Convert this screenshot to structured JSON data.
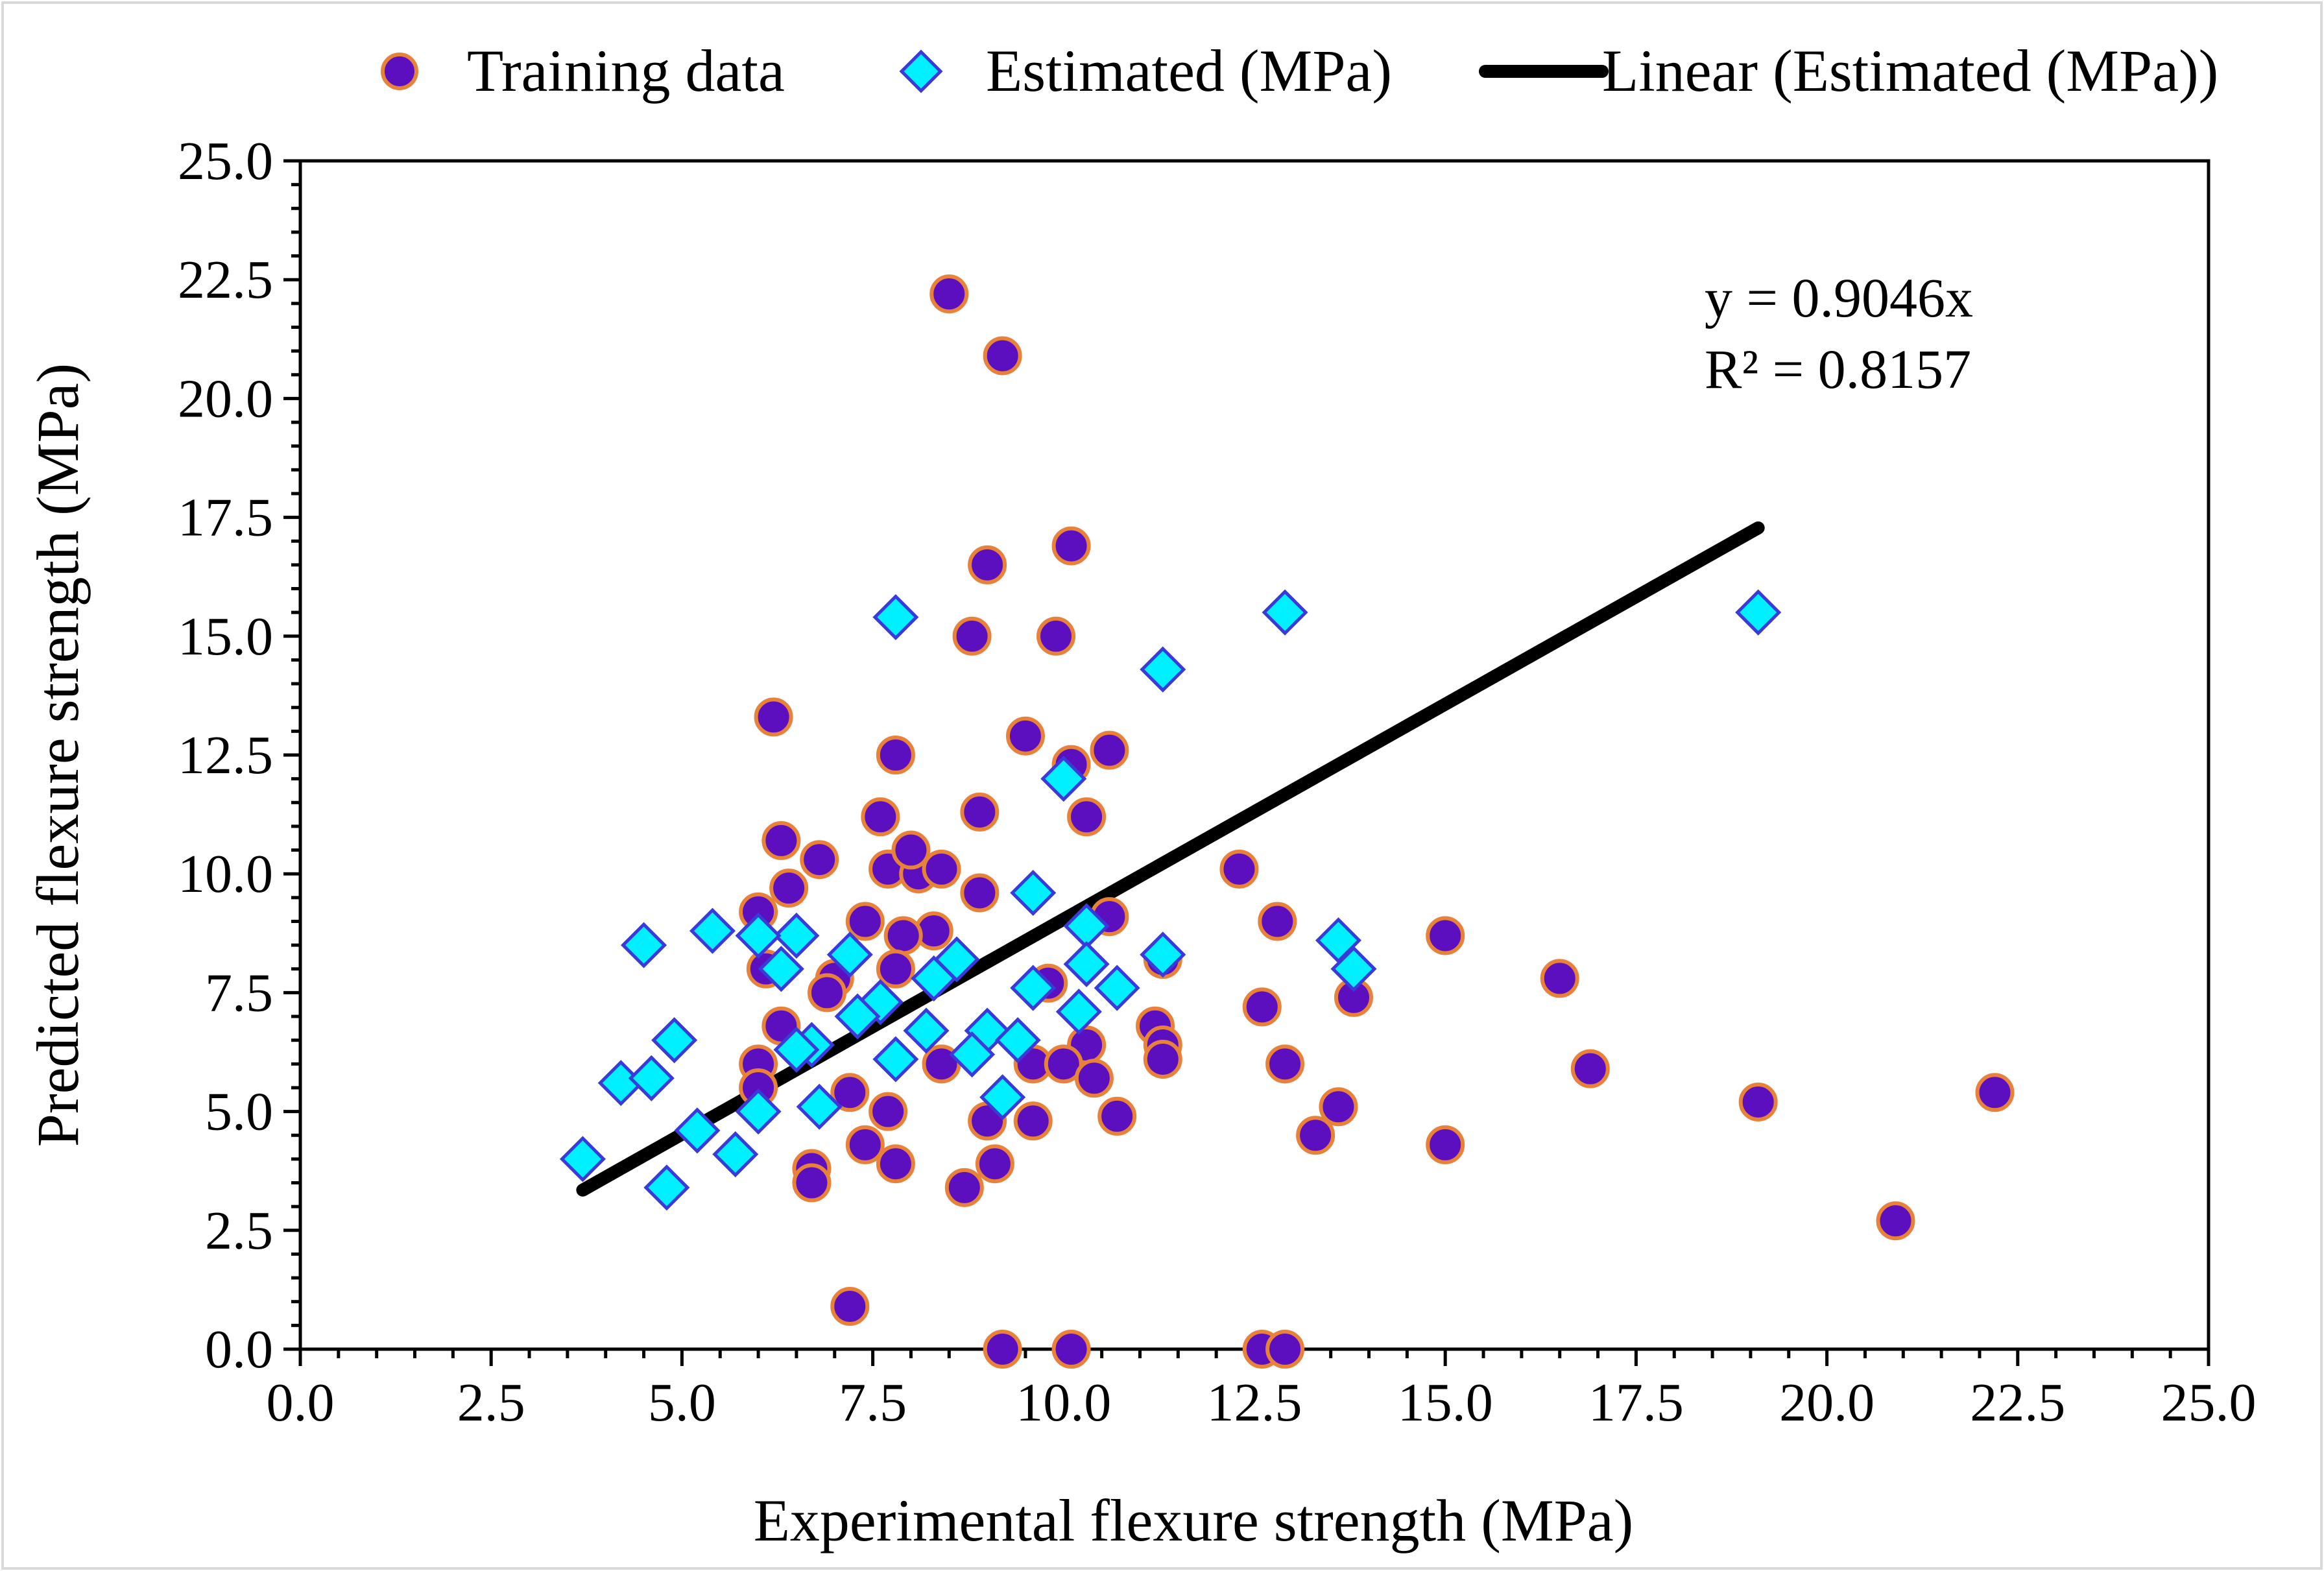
{
  "chart_data": {
    "type": "scatter",
    "title": "",
    "xlabel": "Experimental flexure strength (MPa)",
    "ylabel": "Predicted flexure strength (MPa)",
    "xlim": [
      0,
      25
    ],
    "ylim": [
      0,
      25
    ],
    "xticks": [
      "0.0",
      "2.5",
      "5.0",
      "7.5",
      "10.0",
      "12.5",
      "15.0",
      "17.5",
      "20.0",
      "22.5",
      "25.0"
    ],
    "yticks": [
      "0.0",
      "2.5",
      "5.0",
      "7.5",
      "10.0",
      "12.5",
      "15.0",
      "17.5",
      "20.0",
      "22.5",
      "25.0"
    ],
    "grid": false,
    "legend_position": "top",
    "legend": [
      "Training data",
      "Estimated (MPa)",
      "Linear (Estimated (MPa))"
    ],
    "colors": {
      "training_fill": "#5b0fbf",
      "training_edge": "#e8823a",
      "estimated_fill": "#00f0ff",
      "estimated_edge": "#3a3adb",
      "trendline": "#000000"
    },
    "trendline": {
      "name": "Linear (Estimated (MPa))",
      "slope": 0.9046,
      "intercept": 0,
      "x_range": [
        3.7,
        19.1
      ],
      "equation": "y = 0.9046x",
      "r_squared": "R² = 0.8157"
    },
    "series": [
      {
        "name": "Training data",
        "marker": "circle",
        "points": [
          [
            8.5,
            22.2
          ],
          [
            9.2,
            20.9
          ],
          [
            9.0,
            16.5
          ],
          [
            10.1,
            16.9
          ],
          [
            8.8,
            15.0
          ],
          [
            9.9,
            15.0
          ],
          [
            6.2,
            13.3
          ],
          [
            7.8,
            12.5
          ],
          [
            9.5,
            12.9
          ],
          [
            10.6,
            12.6
          ],
          [
            10.1,
            12.3
          ],
          [
            10.3,
            11.2
          ],
          [
            7.6,
            11.2
          ],
          [
            8.9,
            11.3
          ],
          [
            6.3,
            10.7
          ],
          [
            6.8,
            10.3
          ],
          [
            7.7,
            10.1
          ],
          [
            8.1,
            10.0
          ],
          [
            8.0,
            10.5
          ],
          [
            8.4,
            10.1
          ],
          [
            12.3,
            10.1
          ],
          [
            6.4,
            9.7
          ],
          [
            8.9,
            9.6
          ],
          [
            6.0,
            9.2
          ],
          [
            7.4,
            9.0
          ],
          [
            11.3,
            8.2
          ],
          [
            10.6,
            9.1
          ],
          [
            12.8,
            9.0
          ],
          [
            15.0,
            8.7
          ],
          [
            8.3,
            8.8
          ],
          [
            7.9,
            8.7
          ],
          [
            6.1,
            8.0
          ],
          [
            7.8,
            8.0
          ],
          [
            16.5,
            7.8
          ],
          [
            13.8,
            7.4
          ],
          [
            12.6,
            7.2
          ],
          [
            7.0,
            7.8
          ],
          [
            6.9,
            7.5
          ],
          [
            9.8,
            7.7
          ],
          [
            11.2,
            6.8
          ],
          [
            11.3,
            6.4
          ],
          [
            11.3,
            6.1
          ],
          [
            6.3,
            6.8
          ],
          [
            8.4,
            6.0
          ],
          [
            9.6,
            6.0
          ],
          [
            10.3,
            6.4
          ],
          [
            10.0,
            6.0
          ],
          [
            12.9,
            6.0
          ],
          [
            16.9,
            5.9
          ],
          [
            6.0,
            6.0
          ],
          [
            7.2,
            5.4
          ],
          [
            7.7,
            5.0
          ],
          [
            6.0,
            5.5
          ],
          [
            9.0,
            4.8
          ],
          [
            9.6,
            4.8
          ],
          [
            10.4,
            5.7
          ],
          [
            10.7,
            4.9
          ],
          [
            13.6,
            5.1
          ],
          [
            19.1,
            5.2
          ],
          [
            22.2,
            5.4
          ],
          [
            7.4,
            4.3
          ],
          [
            7.8,
            3.9
          ],
          [
            9.1,
            3.9
          ],
          [
            8.7,
            3.4
          ],
          [
            6.7,
            3.8
          ],
          [
            6.7,
            3.5
          ],
          [
            13.3,
            4.5
          ],
          [
            15.0,
            4.3
          ],
          [
            20.9,
            2.7
          ],
          [
            7.2,
            0.9
          ],
          [
            9.2,
            0.0
          ],
          [
            10.1,
            0.0
          ],
          [
            12.6,
            0.0
          ],
          [
            12.9,
            0.0
          ]
        ]
      },
      {
        "name": "Estimated (MPa)",
        "marker": "diamond",
        "points": [
          [
            7.8,
            15.4
          ],
          [
            12.9,
            15.5
          ],
          [
            19.1,
            15.5
          ],
          [
            11.3,
            14.3
          ],
          [
            10.0,
            12.0
          ],
          [
            9.6,
            9.6
          ],
          [
            5.4,
            8.8
          ],
          [
            6.5,
            8.7
          ],
          [
            6.0,
            8.7
          ],
          [
            4.5,
            8.5
          ],
          [
            10.3,
            8.9
          ],
          [
            11.3,
            8.3
          ],
          [
            13.6,
            8.6
          ],
          [
            13.8,
            8.0
          ],
          [
            7.2,
            8.3
          ],
          [
            8.6,
            8.2
          ],
          [
            10.3,
            8.1
          ],
          [
            6.3,
            8.0
          ],
          [
            8.3,
            7.8
          ],
          [
            9.6,
            7.6
          ],
          [
            10.7,
            7.6
          ],
          [
            7.6,
            7.3
          ],
          [
            10.2,
            7.1
          ],
          [
            7.3,
            7.0
          ],
          [
            8.2,
            6.7
          ],
          [
            9.0,
            6.7
          ],
          [
            9.4,
            6.5
          ],
          [
            6.7,
            6.4
          ],
          [
            4.9,
            6.5
          ],
          [
            6.5,
            6.3
          ],
          [
            8.8,
            6.2
          ],
          [
            7.8,
            6.1
          ],
          [
            4.2,
            5.6
          ],
          [
            4.6,
            5.7
          ],
          [
            9.2,
            5.3
          ],
          [
            6.8,
            5.1
          ],
          [
            6.0,
            5.0
          ],
          [
            5.2,
            4.6
          ],
          [
            5.7,
            4.1
          ],
          [
            3.7,
            4.0
          ],
          [
            4.8,
            3.4
          ]
        ]
      }
    ]
  }
}
